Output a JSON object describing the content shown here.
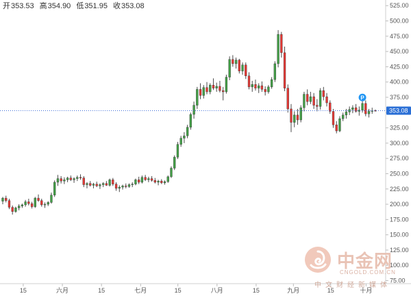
{
  "header": {
    "open_label": "开",
    "open_value": "353.53",
    "high_label": "高",
    "high_value": "354.90",
    "low_label": "低",
    "low_value": "351.95",
    "close_label": "收",
    "close_value": "353.08"
  },
  "colors": {
    "up": "#26a69a",
    "down": "#ef5350",
    "up_body": "#43a047",
    "down_body": "#e53935",
    "price_line": "#3f6fd8",
    "price_badge": "#2a6fd6",
    "marker": "#2196f3"
  },
  "watermark": {
    "cn": "中金网",
    "en": "CNGOLD.COM.CN",
    "sub": "中文财经新媒体"
  },
  "chart_data": {
    "type": "candlestick",
    "y_ticks": [
      "525.00",
      "500.00",
      "475.00",
      "450.00",
      "425.00",
      "400.00",
      "375.00",
      "350.00",
      "325.00",
      "300.00",
      "275.00",
      "250.00",
      "225.00",
      "200.00",
      "175.00",
      "150.00",
      "125.00",
      "100.00",
      "75.00"
    ],
    "ylim": [
      70,
      532
    ],
    "x_ticks": [
      "15",
      "六月",
      "15",
      "七月",
      "15",
      "八月",
      "15",
      "九月",
      "15",
      "十月"
    ],
    "last_price": "353.08",
    "marker_label": "P",
    "ohlc": [
      [
        205,
        212,
        200,
        210
      ],
      [
        210,
        214,
        203,
        206
      ],
      [
        206,
        209,
        192,
        195
      ],
      [
        195,
        198,
        183,
        188
      ],
      [
        188,
        196,
        186,
        194
      ],
      [
        194,
        200,
        190,
        197
      ],
      [
        197,
        201,
        194,
        199
      ],
      [
        199,
        207,
        196,
        204
      ],
      [
        204,
        209,
        198,
        201
      ],
      [
        201,
        204,
        193,
        196
      ],
      [
        196,
        212,
        194,
        210
      ],
      [
        210,
        216,
        204,
        206
      ],
      [
        206,
        209,
        196,
        199
      ],
      [
        199,
        203,
        194,
        200
      ],
      [
        200,
        205,
        197,
        203
      ],
      [
        203,
        219,
        201,
        215
      ],
      [
        215,
        239,
        212,
        236
      ],
      [
        236,
        248,
        230,
        242
      ],
      [
        242,
        246,
        234,
        238
      ],
      [
        238,
        244,
        233,
        240
      ],
      [
        240,
        245,
        236,
        243
      ],
      [
        243,
        247,
        238,
        240
      ],
      [
        240,
        244,
        235,
        242
      ],
      [
        242,
        247,
        238,
        244
      ],
      [
        244,
        249,
        240,
        243
      ],
      [
        243,
        246,
        228,
        232
      ],
      [
        232,
        236,
        226,
        234
      ],
      [
        234,
        238,
        229,
        231
      ],
      [
        231,
        235,
        226,
        233
      ],
      [
        233,
        237,
        228,
        230
      ],
      [
        230,
        234,
        225,
        232
      ],
      [
        232,
        236,
        228,
        234
      ],
      [
        234,
        238,
        230,
        231
      ],
      [
        231,
        242,
        229,
        240
      ],
      [
        240,
        243,
        230,
        233
      ],
      [
        233,
        236,
        222,
        226
      ],
      [
        226,
        231,
        220,
        228
      ],
      [
        228,
        232,
        224,
        230
      ],
      [
        230,
        234,
        226,
        229
      ],
      [
        229,
        234,
        227,
        232
      ],
      [
        232,
        236,
        228,
        233
      ],
      [
        233,
        242,
        231,
        240
      ],
      [
        240,
        245,
        233,
        236
      ],
      [
        236,
        247,
        234,
        244
      ],
      [
        244,
        248,
        238,
        240
      ],
      [
        240,
        245,
        236,
        242
      ],
      [
        242,
        246,
        237,
        239
      ],
      [
        239,
        243,
        234,
        236
      ],
      [
        236,
        240,
        231,
        238
      ],
      [
        238,
        241,
        233,
        235
      ],
      [
        235,
        239,
        232,
        237
      ],
      [
        237,
        247,
        235,
        245
      ],
      [
        245,
        262,
        243,
        259
      ],
      [
        259,
        280,
        256,
        277
      ],
      [
        277,
        302,
        274,
        298
      ],
      [
        298,
        312,
        294,
        308
      ],
      [
        308,
        318,
        300,
        312
      ],
      [
        312,
        330,
        308,
        326
      ],
      [
        326,
        350,
        322,
        347
      ],
      [
        347,
        368,
        340,
        362
      ],
      [
        362,
        392,
        356,
        388
      ],
      [
        388,
        398,
        372,
        378
      ],
      [
        378,
        395,
        373,
        391
      ],
      [
        391,
        400,
        380,
        384
      ],
      [
        384,
        398,
        380,
        395
      ],
      [
        395,
        406,
        387,
        390
      ],
      [
        390,
        399,
        384,
        393
      ],
      [
        393,
        402,
        383,
        386
      ],
      [
        386,
        392,
        370,
        384
      ],
      [
        384,
        412,
        381,
        408
      ],
      [
        408,
        442,
        403,
        437
      ],
      [
        437,
        444,
        425,
        430
      ],
      [
        430,
        440,
        422,
        436
      ],
      [
        436,
        438,
        414,
        418
      ],
      [
        418,
        432,
        412,
        428
      ],
      [
        428,
        432,
        405,
        410
      ],
      [
        410,
        416,
        388,
        392
      ],
      [
        392,
        402,
        384,
        396
      ],
      [
        396,
        404,
        386,
        390
      ],
      [
        390,
        398,
        382,
        394
      ],
      [
        394,
        401,
        384,
        388
      ],
      [
        388,
        393,
        378,
        384
      ],
      [
        384,
        395,
        381,
        392
      ],
      [
        392,
        408,
        389,
        404
      ],
      [
        404,
        434,
        400,
        430
      ],
      [
        430,
        485,
        424,
        478
      ],
      [
        478,
        482,
        440,
        448
      ],
      [
        448,
        458,
        385,
        390
      ],
      [
        390,
        396,
        350,
        356
      ],
      [
        356,
        364,
        318,
        334
      ],
      [
        334,
        352,
        326,
        346
      ],
      [
        346,
        356,
        330,
        338
      ],
      [
        338,
        362,
        334,
        358
      ],
      [
        358,
        384,
        352,
        380
      ],
      [
        380,
        388,
        362,
        368
      ],
      [
        368,
        384,
        364,
        376
      ],
      [
        376,
        382,
        356,
        362
      ],
      [
        362,
        372,
        352,
        360
      ],
      [
        360,
        390,
        355,
        386
      ],
      [
        386,
        392,
        370,
        376
      ],
      [
        376,
        382,
        360,
        366
      ],
      [
        366,
        370,
        348,
        352
      ],
      [
        352,
        356,
        325,
        330
      ],
      [
        330,
        336,
        316,
        320
      ],
      [
        320,
        344,
        318,
        340
      ],
      [
        340,
        350,
        336,
        346
      ],
      [
        346,
        356,
        340,
        351
      ],
      [
        351,
        360,
        346,
        355
      ],
      [
        355,
        362,
        349,
        358
      ],
      [
        358,
        364,
        350,
        352
      ],
      [
        352,
        360,
        345,
        354
      ],
      [
        354,
        369,
        350,
        365
      ],
      [
        365,
        370,
        344,
        348
      ],
      [
        348,
        356,
        342,
        352
      ],
      [
        352,
        358,
        348,
        353
      ],
      [
        353.53,
        354.9,
        351.95,
        353.08
      ]
    ]
  }
}
